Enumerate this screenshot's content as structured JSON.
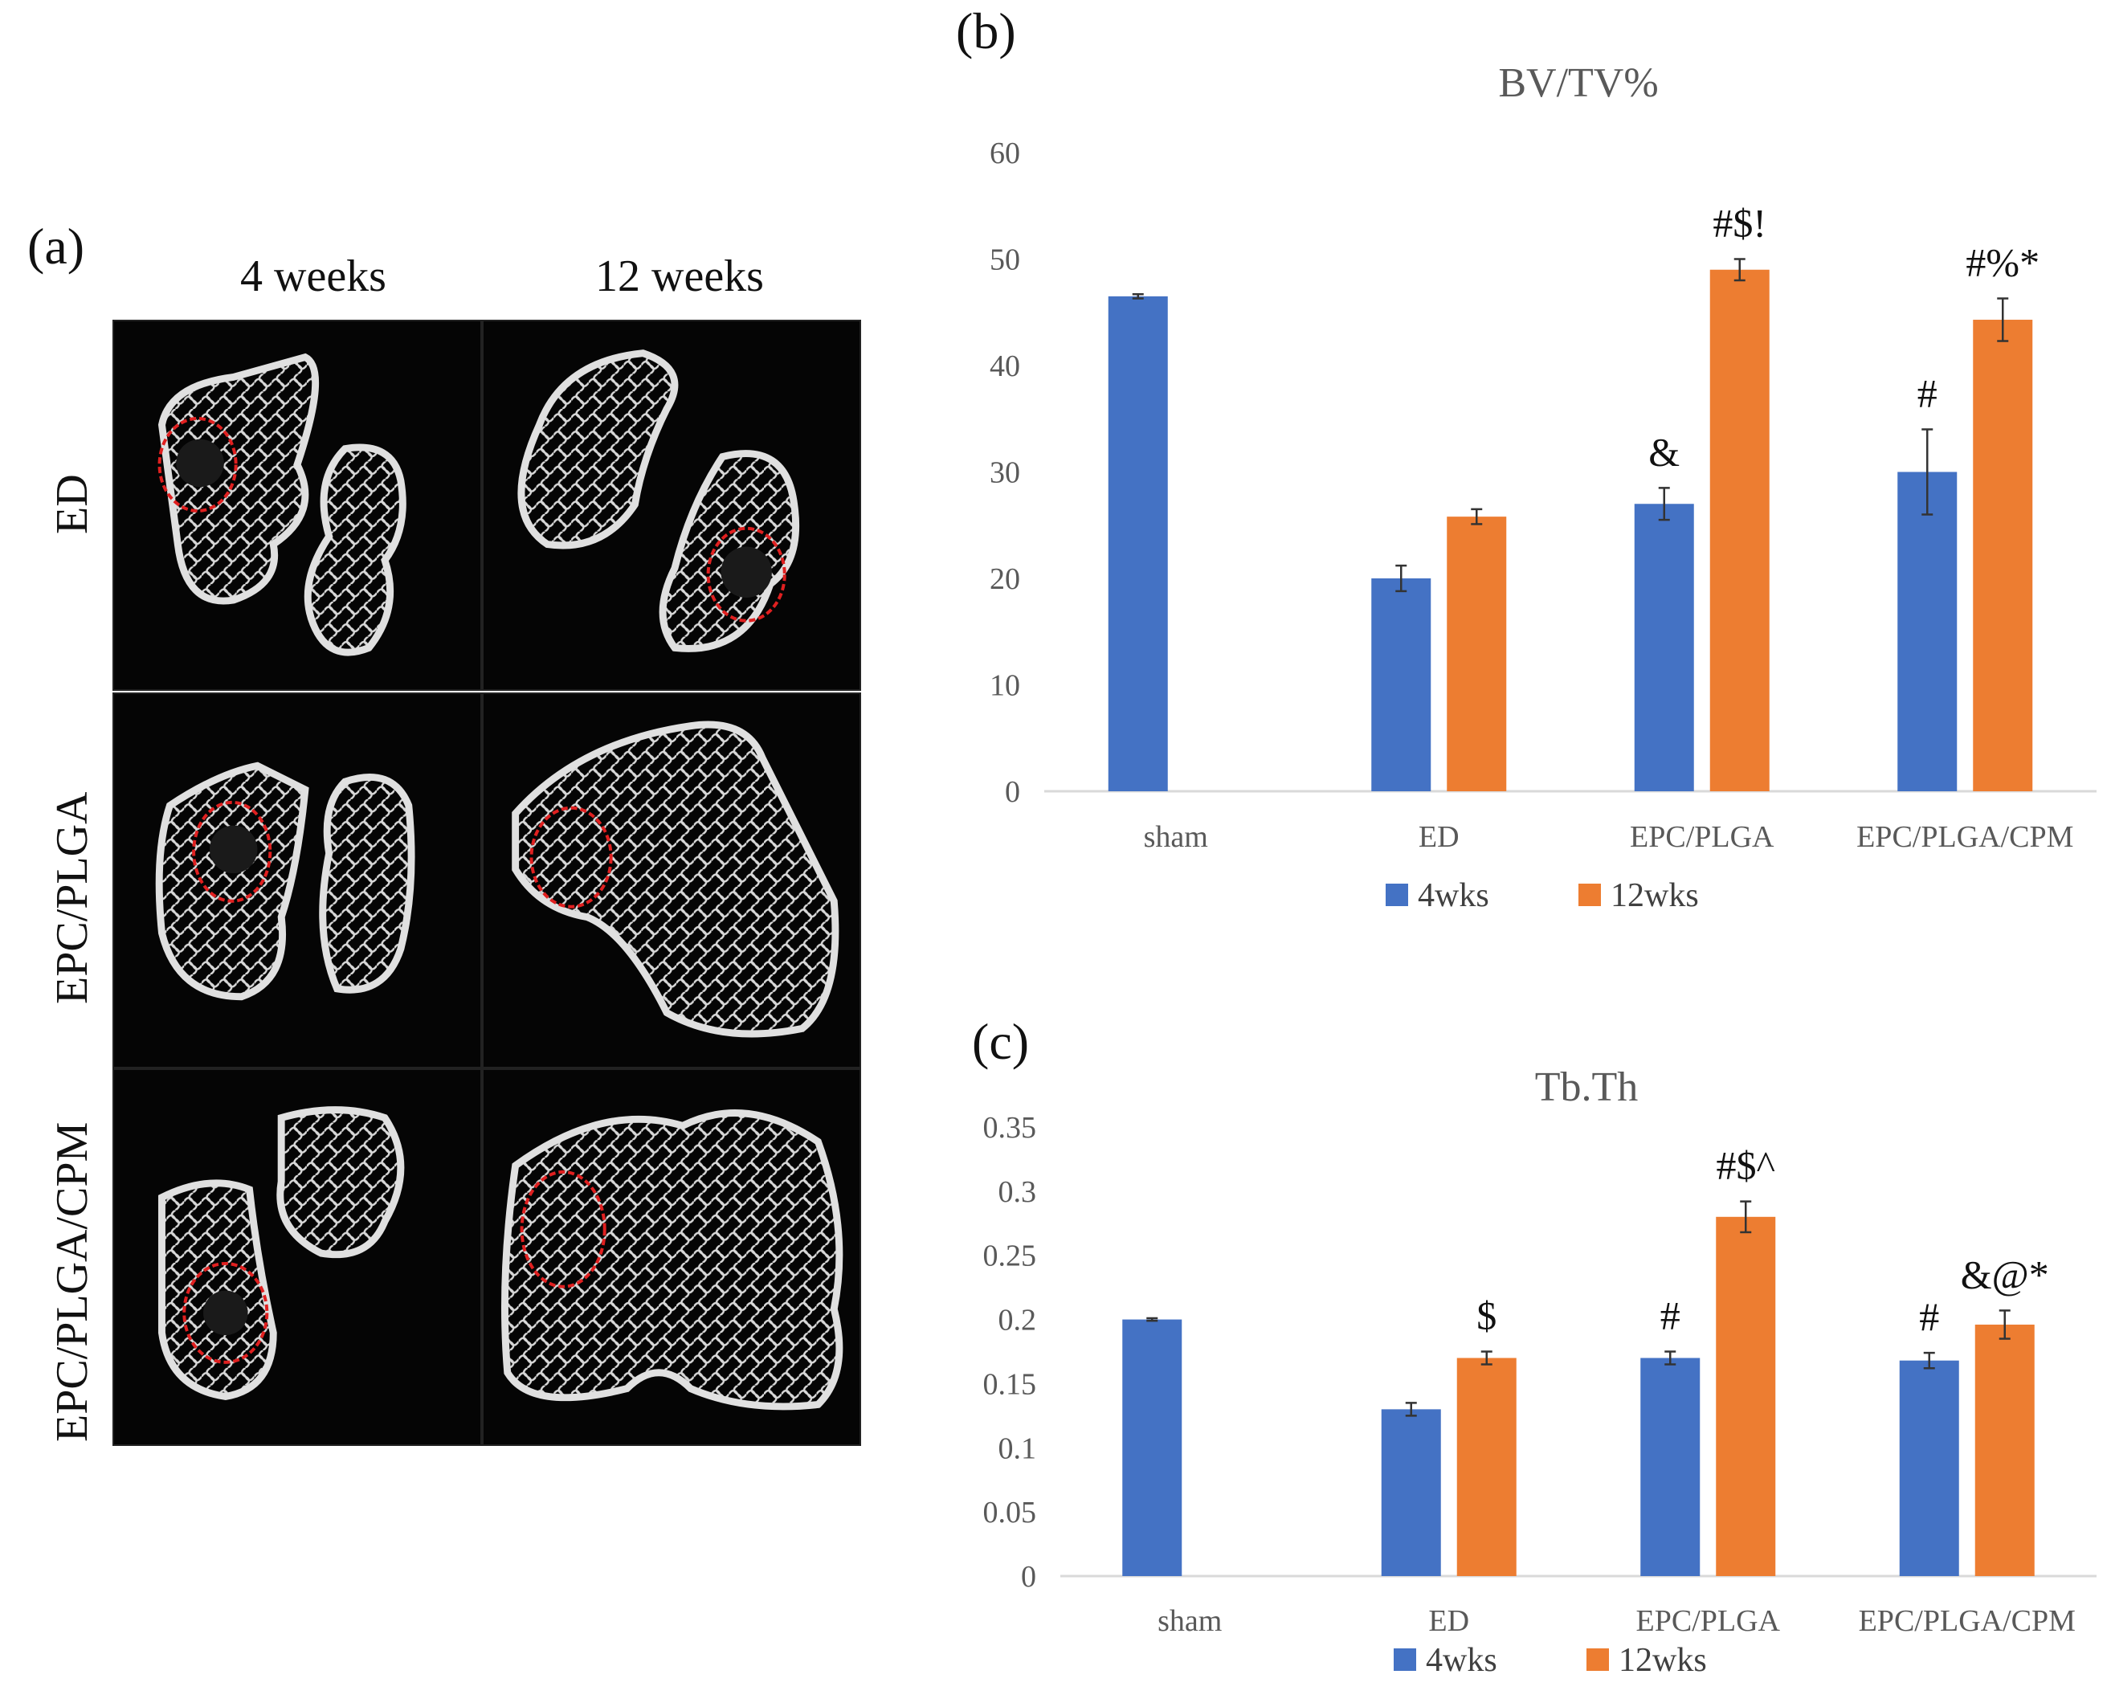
{
  "figure": {
    "panel_a": "(a)",
    "panel_b": "(b)",
    "panel_c": "(c)",
    "columns": [
      "4 weeks",
      "12 weeks"
    ],
    "rows": [
      "ED",
      "EPC/PLGA",
      "EPC/PLGA/CPM"
    ]
  },
  "colors": {
    "series_4wks": "#4472C4",
    "series_12wks": "#ED7D31",
    "defect_circle": "#E02020"
  },
  "chart_data": [
    {
      "type": "bar",
      "title": "BV/TV%",
      "categories": [
        "sham",
        "ED",
        "EPC/PLGA",
        "EPC/PLGA/CPM"
      ],
      "ylim": [
        0,
        60
      ],
      "yticks": [
        0,
        10,
        20,
        30,
        40,
        50,
        60
      ],
      "ytick_labels": [
        "0",
        "10",
        "20",
        "30",
        "40",
        "50",
        "60"
      ],
      "xlabel": "",
      "ylabel": "",
      "legend": "bottom",
      "series": [
        {
          "name": "4wks",
          "values": [
            46.5,
            20.0,
            27.0,
            30.0
          ],
          "errors": [
            0.2,
            1.2,
            1.5,
            4.0
          ],
          "annotations": [
            "",
            "",
            "&",
            "#"
          ]
        },
        {
          "name": "12wks",
          "values": [
            null,
            25.8,
            49.0,
            44.3
          ],
          "errors": [
            null,
            0.7,
            1.0,
            2.0
          ],
          "annotations": [
            "",
            "",
            "#$!",
            "#%*"
          ]
        }
      ]
    },
    {
      "type": "bar",
      "title": "Tb.Th",
      "categories": [
        "sham",
        "ED",
        "EPC/PLGA",
        "EPC/PLGA/CPM"
      ],
      "ylim": [
        0,
        0.35
      ],
      "yticks": [
        0,
        0.05,
        0.1,
        0.15,
        0.2,
        0.25,
        0.3,
        0.35
      ],
      "ytick_labels": [
        "0",
        "0.05",
        "0.1",
        "0.15",
        "0.2",
        "0.25",
        "0.3",
        "0.35"
      ],
      "xlabel": "",
      "ylabel": "",
      "legend": "bottom",
      "series": [
        {
          "name": "4wks",
          "values": [
            0.2,
            0.13,
            0.17,
            0.168
          ],
          "errors": [
            0.001,
            0.005,
            0.005,
            0.006
          ],
          "annotations": [
            "",
            "",
            "#",
            "#"
          ]
        },
        {
          "name": "12wks",
          "values": [
            null,
            0.17,
            0.28,
            0.196
          ],
          "errors": [
            null,
            0.005,
            0.012,
            0.011
          ],
          "annotations": [
            "",
            "$",
            "#$^",
            "&@*"
          ]
        }
      ]
    }
  ]
}
